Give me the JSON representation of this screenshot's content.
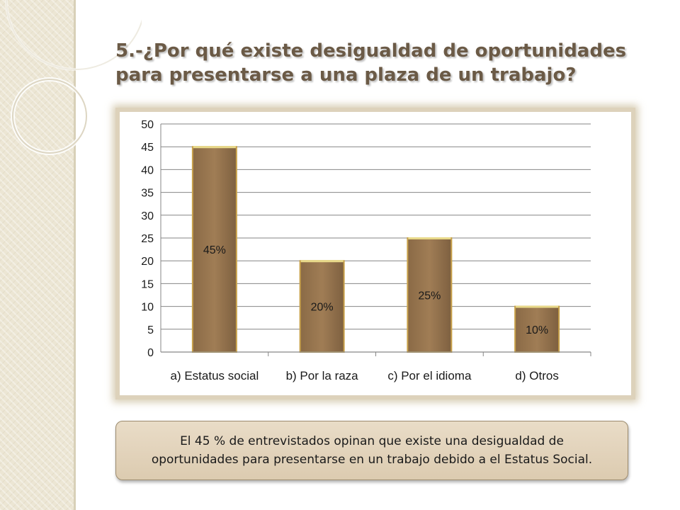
{
  "slide": {
    "title": "5.-¿Por qué existe desigualdad de oportunidades para presentarse a una  plaza de un trabajo?",
    "summary": "El 45 % de entrevistados opinan que existe una desigualdad de oportunidades para presentarse en un trabajo debido a el Estatus Social."
  },
  "colors": {
    "bar_fill": "#a07d55",
    "bar_border": "#c9a24b",
    "bar_top": "#e8d98a",
    "gridline": "#868686",
    "title": "#6b5a46",
    "panel": "#ece6d4"
  },
  "chart_data": {
    "type": "bar",
    "categories": [
      "a) Estatus social",
      "b) Por la raza",
      "c) Por el idioma",
      "d) Otros"
    ],
    "values": [
      45,
      20,
      25,
      10
    ],
    "data_labels": [
      "45%",
      "20%",
      "25%",
      "10%"
    ],
    "yticks": [
      "0",
      "5",
      "10",
      "15",
      "20",
      "25",
      "30",
      "35",
      "40",
      "45",
      "50"
    ],
    "ylim": [
      0,
      50
    ],
    "grid": true,
    "legend": "none",
    "title": "",
    "xlabel": "",
    "ylabel": ""
  }
}
